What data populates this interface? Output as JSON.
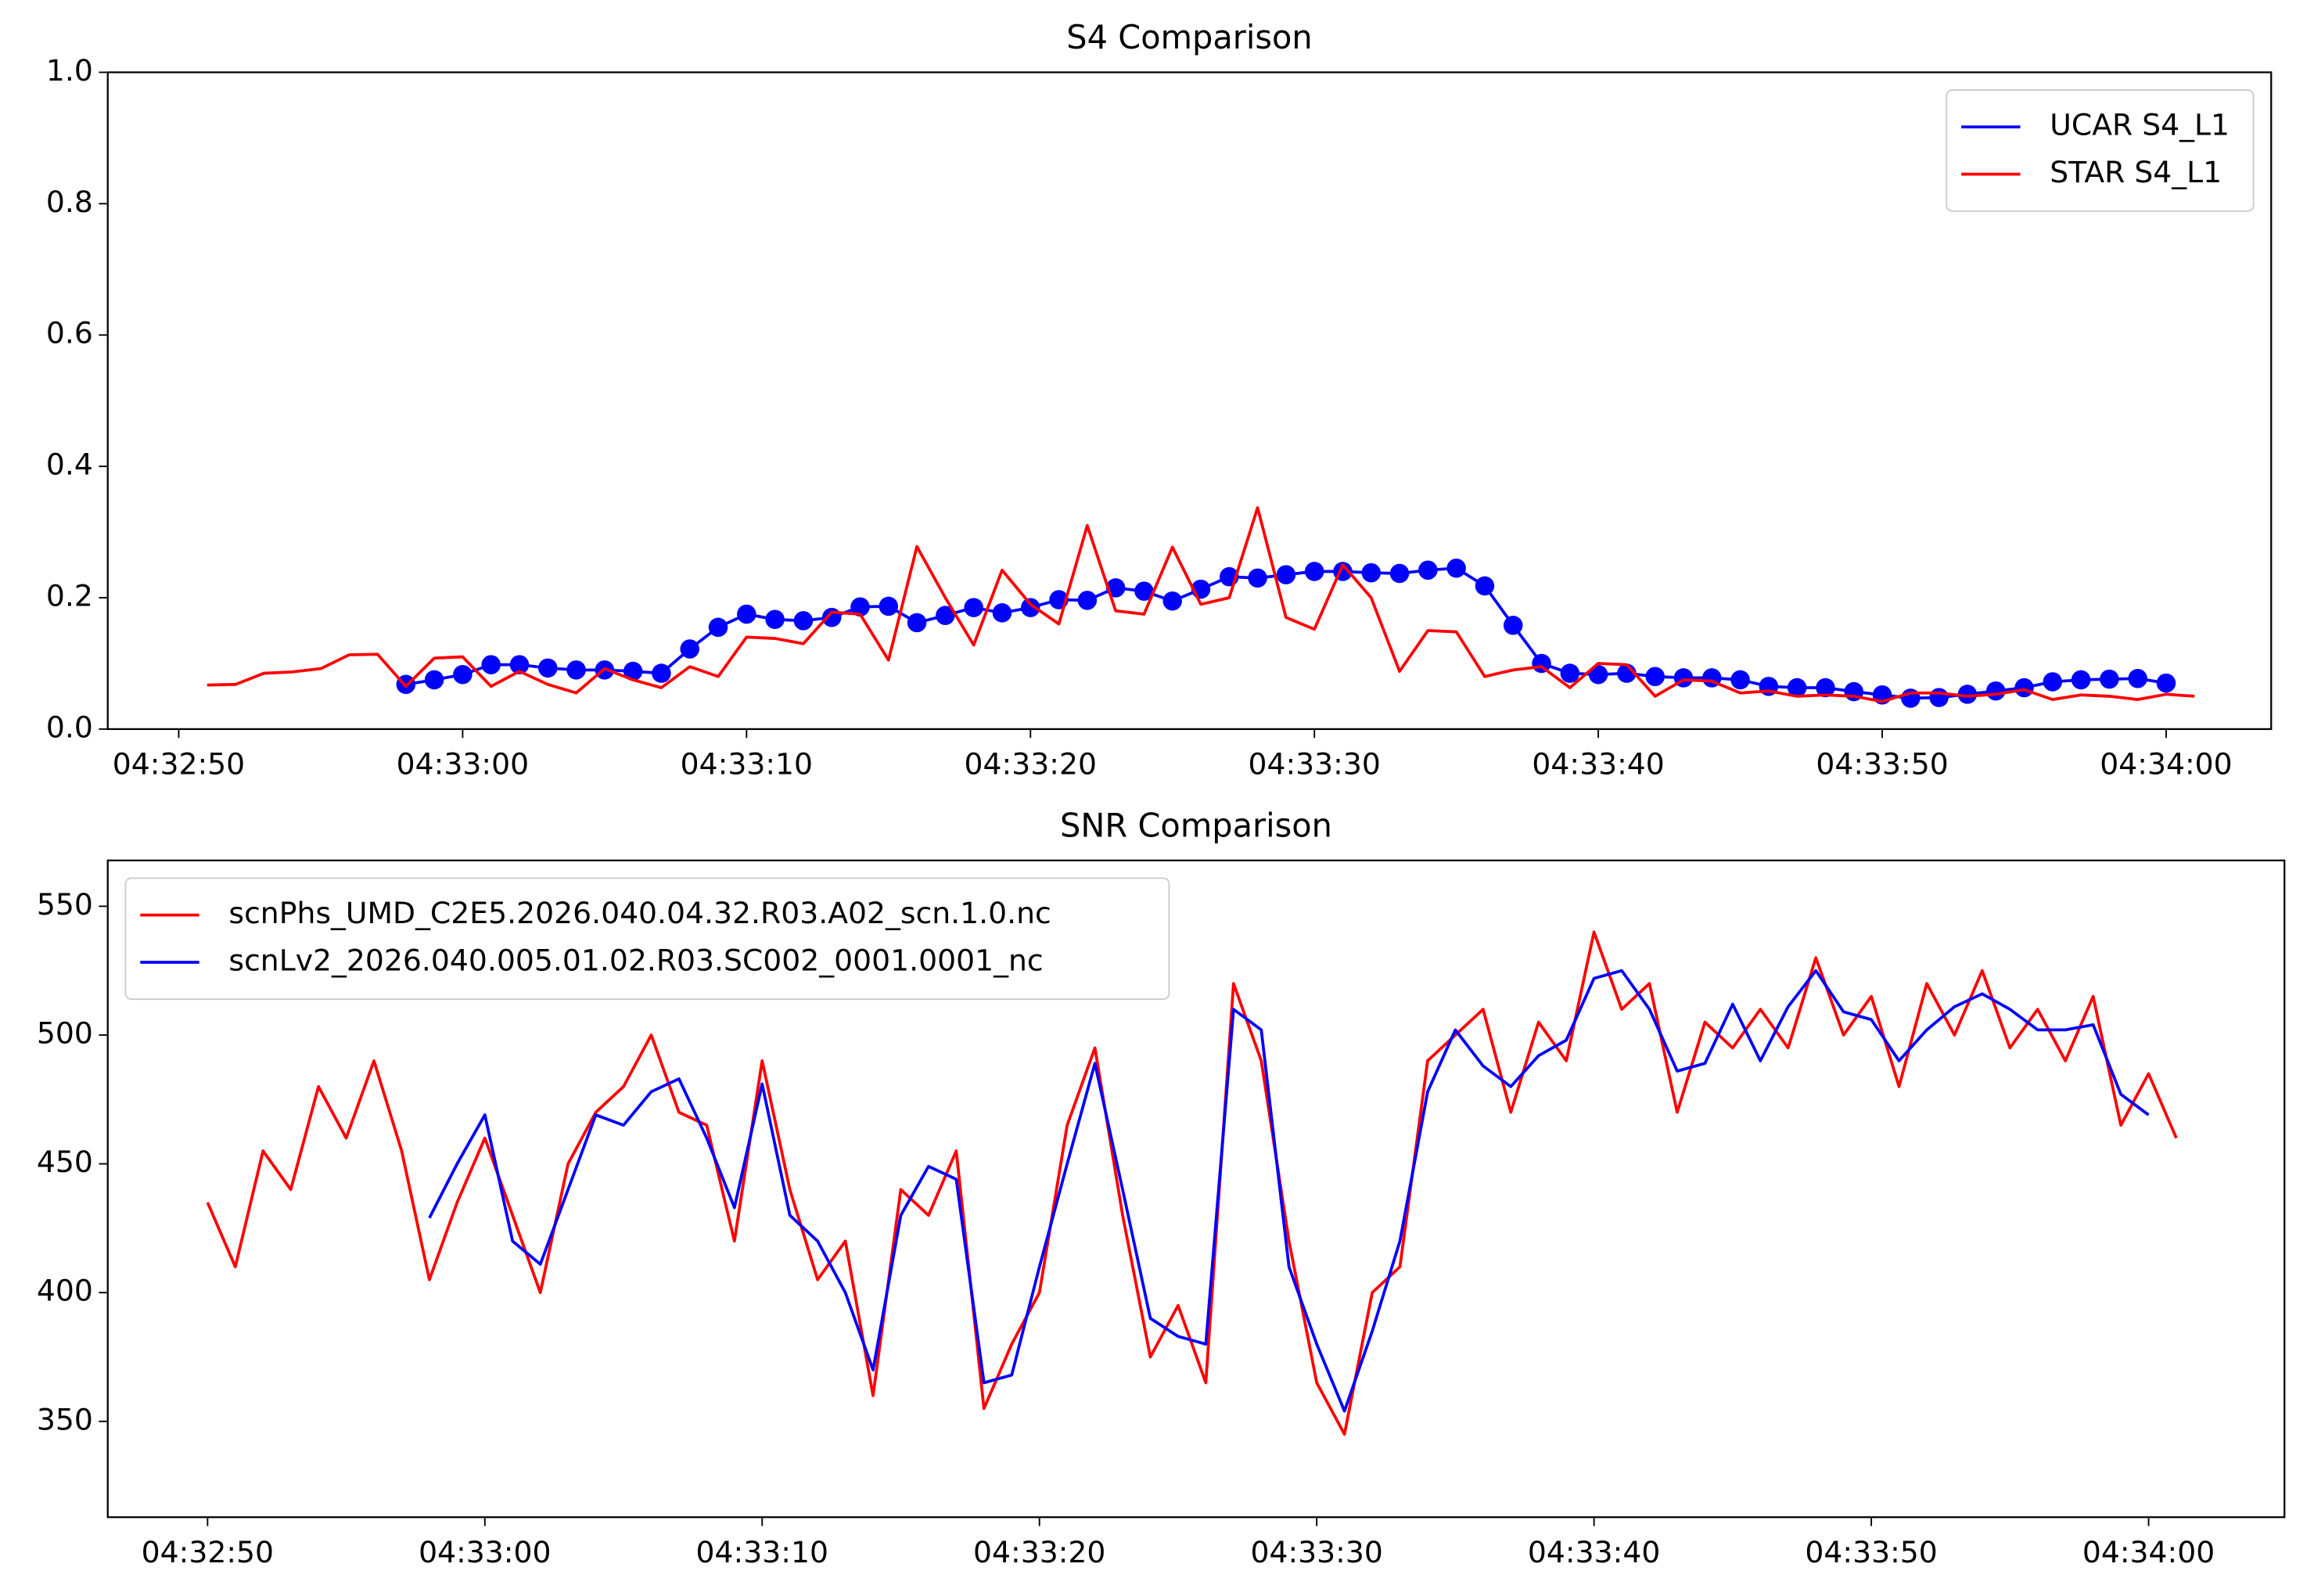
{
  "chart_data": [
    {
      "type": "line",
      "title": "S4 Comparison",
      "xlim": [
        "04:32:47.5",
        "04:34:03.7"
      ],
      "xticks": [
        "04:32:50",
        "04:33:00",
        "04:33:10",
        "04:33:20",
        "04:33:30",
        "04:33:40",
        "04:33:50",
        "04:34:00"
      ],
      "ylim": [
        0,
        1
      ],
      "yticks": [
        {
          "value": 0,
          "label": "0.0"
        },
        {
          "value": 0.2,
          "label": "0.2"
        },
        {
          "value": 0.4,
          "label": "0.4"
        },
        {
          "value": 0.6,
          "label": "0.6"
        },
        {
          "value": 0.8,
          "label": "0.8"
        },
        {
          "value": 1,
          "label": "1.0"
        }
      ],
      "legend": "upper right",
      "series": [
        {
          "name": "UCAR S4_L1",
          "color": "#0000ff",
          "marker": "o",
          "x": [
            "04:32:58",
            "04:32:59",
            "04:33:00",
            "04:33:01",
            "04:33:02",
            "04:33:03",
            "04:33:04",
            "04:33:05",
            "04:33:06",
            "04:33:07",
            "04:33:08",
            "04:33:09",
            "04:33:10",
            "04:33:11",
            "04:33:12",
            "04:33:13",
            "04:33:14",
            "04:33:15",
            "04:33:16",
            "04:33:17",
            "04:33:18",
            "04:33:19",
            "04:33:20",
            "04:33:21",
            "04:33:22",
            "04:33:23",
            "04:33:24",
            "04:33:25",
            "04:33:26",
            "04:33:27",
            "04:33:28",
            "04:33:29",
            "04:33:30",
            "04:33:31",
            "04:33:32",
            "04:33:33",
            "04:33:34",
            "04:33:35",
            "04:33:36",
            "04:33:37",
            "04:33:38",
            "04:33:39",
            "04:33:40",
            "04:33:41",
            "04:33:42",
            "04:33:43",
            "04:33:44",
            "04:33:45",
            "04:33:46",
            "04:33:47",
            "04:33:48",
            "04:33:49",
            "04:33:50",
            "04:33:51",
            "04:33:52",
            "04:33:53",
            "04:33:54",
            "04:33:55",
            "04:33:56",
            "04:33:57",
            "04:33:58",
            "04:33:59",
            "04:34:00"
          ],
          "values": [
            0.068,
            0.075,
            0.083,
            0.098,
            0.098,
            0.093,
            0.09,
            0.09,
            0.088,
            0.085,
            0.122,
            0.155,
            0.175,
            0.167,
            0.165,
            0.17,
            0.186,
            0.187,
            0.162,
            0.173,
            0.185,
            0.177,
            0.185,
            0.197,
            0.196,
            0.215,
            0.21,
            0.195,
            0.213,
            0.232,
            0.23,
            0.235,
            0.24,
            0.24,
            0.238,
            0.237,
            0.242,
            0.245,
            0.218,
            0.158,
            0.1,
            0.085,
            0.083,
            0.085,
            0.08,
            0.078,
            0.078,
            0.075,
            0.065,
            0.063,
            0.063,
            0.057,
            0.052,
            0.047,
            0.048,
            0.053,
            0.058,
            0.063,
            0.072,
            0.075,
            0.076,
            0.077,
            0.07
          ]
        },
        {
          "name": "STAR S4_L1",
          "color": "#ff0000",
          "x": [
            "04:32:51",
            "04:32:52",
            "04:32:53",
            "04:32:54",
            "04:32:55",
            "04:32:56",
            "04:32:57",
            "04:32:58",
            "04:32:59",
            "04:33:00",
            "04:33:01",
            "04:33:02",
            "04:33:03",
            "04:33:04",
            "04:33:05",
            "04:33:06",
            "04:33:07",
            "04:33:08",
            "04:33:09",
            "04:33:10",
            "04:33:11",
            "04:33:12",
            "04:33:13",
            "04:33:14",
            "04:33:15",
            "04:33:16",
            "04:33:17",
            "04:33:18",
            "04:33:19",
            "04:33:20",
            "04:33:21",
            "04:33:22",
            "04:33:23",
            "04:33:24",
            "04:33:25",
            "04:33:26",
            "04:33:27",
            "04:33:28",
            "04:33:29",
            "04:33:30",
            "04:33:31",
            "04:33:32",
            "04:33:33",
            "04:33:34",
            "04:33:35",
            "04:33:36",
            "04:33:37",
            "04:33:38",
            "04:33:39",
            "04:33:40",
            "04:33:41",
            "04:33:42",
            "04:33:43",
            "04:33:44",
            "04:33:45",
            "04:33:46",
            "04:33:47",
            "04:33:48",
            "04:33:49",
            "04:33:50",
            "04:33:51",
            "04:33:52",
            "04:33:53",
            "04:33:54",
            "04:33:55",
            "04:33:56",
            "04:33:57",
            "04:33:58",
            "04:33:59",
            "04:34:00",
            "04:34:01"
          ],
          "values": [
            0.067,
            0.068,
            0.085,
            0.087,
            0.092,
            0.113,
            0.114,
            0.065,
            0.108,
            0.11,
            0.065,
            0.088,
            0.068,
            0.055,
            0.092,
            0.075,
            0.063,
            0.095,
            0.08,
            0.14,
            0.138,
            0.13,
            0.178,
            0.175,
            0.105,
            0.278,
            0.2,
            0.128,
            0.242,
            0.19,
            0.16,
            0.31,
            0.18,
            0.175,
            0.277,
            0.19,
            0.2,
            0.337,
            0.17,
            0.152,
            0.25,
            0.2,
            0.088,
            0.15,
            0.148,
            0.08,
            0.09,
            0.095,
            0.063,
            0.1,
            0.098,
            0.05,
            0.075,
            0.073,
            0.055,
            0.058,
            0.05,
            0.052,
            0.05,
            0.042,
            0.055,
            0.055,
            0.05,
            0.053,
            0.06,
            0.045,
            0.052,
            0.05,
            0.045,
            0.053,
            0.05
          ]
        }
      ]
    },
    {
      "type": "line",
      "title": "SNR Comparison",
      "xlim": [
        "04:32:46.4",
        "04:34:04.9"
      ],
      "xticks": [
        "04:32:50",
        "04:33:00",
        "04:33:10",
        "04:33:20",
        "04:33:30",
        "04:33:40",
        "04:33:50",
        "04:34:00"
      ],
      "ylim": [
        312.8,
        567.8
      ],
      "yticks": [
        350,
        400,
        450,
        500,
        550
      ],
      "legend": "upper left",
      "series": [
        {
          "name": "scnPhs_UMD_C2E5.2026.040.04.32.R03.A02_scn.1.0.nc",
          "color": "#ff0000",
          "x": [
            "04:32:50",
            "04:32:51",
            "04:32:52",
            "04:32:53",
            "04:32:54",
            "04:32:55",
            "04:32:56",
            "04:32:57",
            "04:32:58",
            "04:32:59",
            "04:33:00",
            "04:33:01",
            "04:33:02",
            "04:33:03",
            "04:33:04",
            "04:33:05",
            "04:33:06",
            "04:33:07",
            "04:33:08",
            "04:33:09",
            "04:33:10",
            "04:33:11",
            "04:33:12",
            "04:33:13",
            "04:33:14",
            "04:33:15",
            "04:33:16",
            "04:33:17",
            "04:33:18",
            "04:33:19",
            "04:33:20",
            "04:33:21",
            "04:33:22",
            "04:33:23",
            "04:33:24",
            "04:33:25",
            "04:33:26",
            "04:33:27",
            "04:33:28",
            "04:33:29",
            "04:33:30",
            "04:33:31",
            "04:33:32",
            "04:33:33",
            "04:33:34",
            "04:33:35",
            "04:33:36",
            "04:33:37",
            "04:33:38",
            "04:33:39",
            "04:33:40",
            "04:33:41",
            "04:33:42",
            "04:33:43",
            "04:33:44",
            "04:33:45",
            "04:33:46",
            "04:33:47",
            "04:33:48",
            "04:33:49",
            "04:33:50",
            "04:33:51",
            "04:33:52",
            "04:33:53",
            "04:33:54",
            "04:33:55",
            "04:33:56",
            "04:33:57",
            "04:33:58",
            "04:33:59",
            "04:34:00",
            "04:34:01"
          ],
          "values": [
            435,
            410,
            455,
            440,
            480,
            460,
            490,
            455,
            405,
            435,
            460,
            430,
            400,
            450,
            470,
            480,
            500,
            470,
            465,
            420,
            490,
            440,
            405,
            420,
            360,
            440,
            430,
            455,
            355,
            380,
            400,
            465,
            495,
            430,
            375,
            395,
            365,
            520,
            490,
            420,
            365,
            345,
            400,
            410,
            490,
            500,
            510,
            470,
            505,
            490,
            540,
            510,
            520,
            470,
            505,
            495,
            510,
            495,
            530,
            500,
            515,
            480,
            520,
            500,
            525,
            495,
            510,
            490,
            515,
            465,
            485,
            460
          ]
        },
        {
          "name": "scnLv2_2026.040.005.01.02.R03.SC002_0001.0001_nc",
          "color": "#0000ff",
          "x": [
            "04:32:58",
            "04:32:59",
            "04:33:00",
            "04:33:01",
            "04:33:02",
            "04:33:03",
            "04:33:04",
            "04:33:05",
            "04:33:06",
            "04:33:07",
            "04:33:08",
            "04:33:09",
            "04:33:10",
            "04:33:11",
            "04:33:12",
            "04:33:13",
            "04:33:14",
            "04:33:15",
            "04:33:16",
            "04:33:17",
            "04:33:18",
            "04:33:19",
            "04:33:20",
            "04:33:21",
            "04:33:22",
            "04:33:23",
            "04:33:24",
            "04:33:25",
            "04:33:26",
            "04:33:27",
            "04:33:28",
            "04:33:29",
            "04:33:30",
            "04:33:31",
            "04:33:32",
            "04:33:33",
            "04:33:34",
            "04:33:35",
            "04:33:36",
            "04:33:37",
            "04:33:38",
            "04:33:39",
            "04:33:40",
            "04:33:41",
            "04:33:42",
            "04:33:43",
            "04:33:44",
            "04:33:45",
            "04:33:46",
            "04:33:47",
            "04:33:48",
            "04:33:49",
            "04:33:50",
            "04:33:51",
            "04:33:52",
            "04:33:53",
            "04:33:54",
            "04:33:55",
            "04:33:56",
            "04:33:57",
            "04:33:58",
            "04:33:59",
            "04:34:00"
          ],
          "values": [
            429,
            450,
            469,
            420,
            411,
            440,
            469,
            465,
            478,
            483,
            460,
            433,
            481,
            430,
            420,
            400,
            370,
            430,
            449,
            444,
            365,
            368,
            410,
            450,
            489,
            440,
            390,
            383,
            380,
            510,
            502,
            410,
            380,
            354,
            385,
            420,
            478,
            502,
            488,
            480,
            492,
            498,
            522,
            525,
            510,
            486,
            489,
            512,
            490,
            511,
            525,
            509,
            506,
            490,
            502,
            511,
            516,
            510,
            502,
            502,
            504,
            477,
            469
          ]
        }
      ]
    }
  ]
}
